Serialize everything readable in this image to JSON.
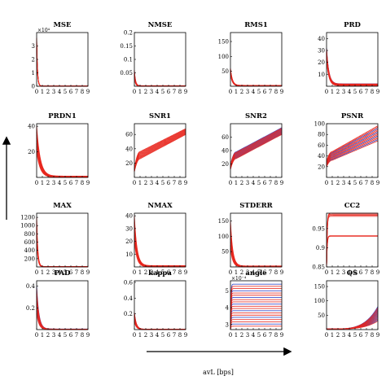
{
  "colors": {
    "red": "#e8261d",
    "blue": "#2b3ec4",
    "axis": "#000000"
  },
  "figure": {
    "xlabel": "avL [bps]",
    "arrow_up": "up-arrow-icon",
    "arrow_right": "right-arrow-icon"
  },
  "chart_data": [
    {
      "title": "MSE",
      "type": "line",
      "ylim": [
        0,
        40000
      ],
      "yticks": [
        0,
        10000,
        20000,
        30000
      ],
      "ytick_labels": [
        "0",
        "1",
        "2",
        "3"
      ],
      "exponent_label": "×10⁴",
      "xlim": [
        0,
        9
      ],
      "xticks": [
        0,
        1,
        2,
        3,
        4,
        5,
        6,
        7,
        8,
        9
      ],
      "kind": "decay",
      "start": [
        30000,
        36000
      ],
      "floor": [
        0,
        200
      ],
      "rate": 7,
      "red": 8,
      "blue": 0
    },
    {
      "title": "NMSE",
      "type": "line",
      "ylim": [
        0,
        0.2
      ],
      "yticks": [
        0.05,
        0.1,
        0.15,
        0.2
      ],
      "ytick_labels": [
        "0.05",
        "0.1",
        "0.15",
        "0.2"
      ],
      "xlim": [
        0,
        9
      ],
      "xticks": [
        0,
        1,
        2,
        3,
        4,
        5,
        6,
        7,
        8,
        9
      ],
      "kind": "decay",
      "start": [
        0.03,
        0.06
      ],
      "floor": [
        0,
        0.002
      ],
      "rate": 5,
      "red": 6,
      "blue": 3
    },
    {
      "title": "RMS1",
      "type": "line",
      "ylim": [
        0,
        180
      ],
      "yticks": [
        50,
        100,
        150
      ],
      "ytick_labels": [
        "50",
        "100",
        "150"
      ],
      "xlim": [
        0,
        9
      ],
      "xticks": [
        0,
        1,
        2,
        3,
        4,
        5,
        6,
        7,
        8,
        9
      ],
      "kind": "decay",
      "start": [
        40,
        60
      ],
      "floor": [
        1,
        3
      ],
      "rate": 3,
      "red": 8,
      "blue": 2
    },
    {
      "title": "PRD",
      "type": "line",
      "ylim": [
        0,
        45
      ],
      "yticks": [
        10,
        20,
        30,
        40
      ],
      "ytick_labels": [
        "10",
        "20",
        "30",
        "40"
      ],
      "xlim": [
        0,
        9
      ],
      "xticks": [
        0,
        1,
        2,
        3,
        4,
        5,
        6,
        7,
        8,
        9
      ],
      "kind": "decay",
      "start": [
        22,
        32
      ],
      "floor": [
        0.5,
        2
      ],
      "rate": 2.5,
      "red": 10,
      "blue": 4
    },
    {
      "title": "PRDN1",
      "type": "line",
      "ylim": [
        0,
        42
      ],
      "yticks": [
        20,
        40
      ],
      "ytick_labels": [
        "20",
        "40"
      ],
      "xlim": [
        0,
        9
      ],
      "xticks": [
        0,
        1,
        2,
        3,
        4,
        5,
        6,
        7,
        8,
        9
      ],
      "kind": "decay",
      "start": [
        20,
        40
      ],
      "floor": [
        0,
        1
      ],
      "rate": 1.6,
      "red": 10,
      "blue": 0
    },
    {
      "title": "SNR1",
      "type": "line",
      "ylim": [
        0,
        75
      ],
      "yticks": [
        20,
        40,
        60
      ],
      "ytick_labels": [
        "20",
        "40",
        "60"
      ],
      "xlim": [
        0,
        9
      ],
      "xticks": [
        0,
        1,
        2,
        3,
        4,
        5,
        6,
        7,
        8,
        9
      ],
      "kind": "rise",
      "start": [
        8,
        12
      ],
      "mid": [
        26,
        36
      ],
      "end": [
        60,
        68
      ],
      "red": 10,
      "blue": 0
    },
    {
      "title": "SNR2",
      "type": "line",
      "ylim": [
        0,
        80
      ],
      "yticks": [
        20,
        40,
        60
      ],
      "ytick_labels": [
        "20",
        "40",
        "60"
      ],
      "xlim": [
        0,
        9
      ],
      "xticks": [
        0,
        1,
        2,
        3,
        4,
        5,
        6,
        7,
        8,
        9
      ],
      "kind": "rise",
      "start": [
        12,
        18
      ],
      "mid": [
        28,
        38
      ],
      "end": [
        64,
        74
      ],
      "red": 8,
      "blue": 6
    },
    {
      "title": "PSNR",
      "type": "line",
      "ylim": [
        0,
        100
      ],
      "yticks": [
        20,
        40,
        60,
        80,
        100
      ],
      "ytick_labels": [
        "20",
        "40",
        "60",
        "80",
        "100"
      ],
      "xlim": [
        0,
        9
      ],
      "xticks": [
        0,
        1,
        2,
        3,
        4,
        5,
        6,
        7,
        8,
        9
      ],
      "kind": "rise",
      "start": [
        20,
        30
      ],
      "mid": [
        32,
        48
      ],
      "end": [
        68,
        96
      ],
      "red": 9,
      "blue": 4
    },
    {
      "title": "MAX",
      "type": "line",
      "ylim": [
        0,
        1300
      ],
      "yticks": [
        200,
        400,
        600,
        800,
        1000,
        1200
      ],
      "ytick_labels": [
        "200",
        "400",
        "600",
        "800",
        "1000",
        "1200"
      ],
      "xlim": [
        0,
        9
      ],
      "xticks": [
        0,
        1,
        2,
        3,
        4,
        5,
        6,
        7,
        8,
        9
      ],
      "kind": "decay",
      "start": [
        700,
        1200
      ],
      "floor": [
        0,
        10
      ],
      "rate": 5,
      "red": 8,
      "blue": 0
    },
    {
      "title": "NMAX",
      "type": "line",
      "ylim": [
        0,
        42
      ],
      "yticks": [
        10,
        20,
        30,
        40
      ],
      "ytick_labels": [
        "10",
        "20",
        "30",
        "40"
      ],
      "xlim": [
        0,
        9
      ],
      "xticks": [
        0,
        1,
        2,
        3,
        4,
        5,
        6,
        7,
        8,
        9
      ],
      "kind": "decay",
      "start": [
        20,
        40
      ],
      "floor": [
        0,
        1
      ],
      "rate": 2.2,
      "red": 9,
      "blue": 0
    },
    {
      "title": "STDERR",
      "type": "line",
      "ylim": [
        0,
        175
      ],
      "yticks": [
        50,
        100,
        150
      ],
      "ytick_labels": [
        "50",
        "100",
        "150"
      ],
      "xlim": [
        0,
        9
      ],
      "xticks": [
        0,
        1,
        2,
        3,
        4,
        5,
        6,
        7,
        8,
        9
      ],
      "kind": "decay",
      "start": [
        60,
        150
      ],
      "floor": [
        0,
        3
      ],
      "rate": 2.5,
      "red": 9,
      "blue": 0
    },
    {
      "title": "CC2",
      "type": "line",
      "ylim": [
        0.85,
        0.99
      ],
      "yticks": [
        0.85,
        0.9,
        0.95
      ],
      "ytick_labels": [
        "0.85",
        "0.9",
        "0.95"
      ],
      "xlim": [
        0,
        9
      ],
      "xticks": [
        0,
        1,
        2,
        3,
        4,
        5,
        6,
        7,
        8,
        9
      ],
      "kind": "sat",
      "groups": [
        [
          0.93,
          0.932,
          0.3
        ],
        [
          0.982,
          0.99,
          0.7
        ]
      ],
      "red": 8,
      "blue": 0
    },
    {
      "title": "PAD",
      "type": "line",
      "ylim": [
        0,
        0.45
      ],
      "yticks": [
        0.2,
        0.4
      ],
      "ytick_labels": [
        "0.2",
        "0.4"
      ],
      "xlim": [
        0,
        9
      ],
      "xticks": [
        0,
        1,
        2,
        3,
        4,
        5,
        6,
        7,
        8,
        9
      ],
      "kind": "decay",
      "start": [
        0.15,
        0.4
      ],
      "floor": [
        0,
        0.005
      ],
      "rate": 2.5,
      "red": 4,
      "blue": 8
    },
    {
      "title": "kappa",
      "type": "line",
      "ylim": [
        0,
        0.62
      ],
      "yticks": [
        0.2,
        0.4,
        0.6
      ],
      "ytick_labels": [
        "0.2",
        "0.4",
        "0.6"
      ],
      "xlim": [
        0,
        9
      ],
      "xticks": [
        0,
        1,
        2,
        3,
        4,
        5,
        6,
        7,
        8,
        9
      ],
      "kind": "decay",
      "start": [
        0.1,
        0.22
      ],
      "floor": [
        0,
        0.005
      ],
      "rate": 3,
      "red": 8,
      "blue": 4
    },
    {
      "title": "angle",
      "type": "line",
      "ylim": [
        2.7,
        5.6
      ],
      "yticks": [
        3,
        4,
        5
      ],
      "ytick_labels": [
        "3",
        "4",
        "5"
      ],
      "exponent_label": "×10⁻⁴",
      "xlim": [
        0,
        9
      ],
      "xticks": [
        0,
        1,
        2,
        3,
        4,
        5,
        6,
        7,
        8,
        9
      ],
      "kind": "flat",
      "range": [
        2.9,
        5.4
      ],
      "red": 12,
      "blue": 8
    },
    {
      "title": "QS",
      "type": "line",
      "ylim": [
        0,
        170
      ],
      "yticks": [
        50,
        100,
        150
      ],
      "ytick_labels": [
        "50",
        "100",
        "150"
      ],
      "xlim": [
        0,
        9
      ],
      "xticks": [
        0,
        1,
        2,
        3,
        4,
        5,
        6,
        7,
        8,
        9
      ],
      "kind": "grow",
      "end": [
        30,
        80
      ],
      "red": 8,
      "blue": 6
    }
  ]
}
